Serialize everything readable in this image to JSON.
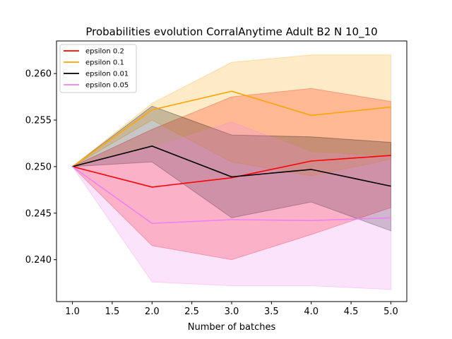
{
  "chart_data": {
    "type": "line",
    "title": "Probabilities evolution CorralAnytime Adult B2 N 10_10",
    "xlabel": "Number of batches",
    "ylabel": "",
    "xlim": [
      0.8,
      5.2
    ],
    "ylim": [
      0.2355,
      0.2635
    ],
    "xticks": [
      1.0,
      1.5,
      2.0,
      2.5,
      3.0,
      3.5,
      4.0,
      4.5,
      5.0
    ],
    "xtick_labels": [
      "1.0",
      "1.5",
      "2.0",
      "2.5",
      "3.0",
      "3.5",
      "4.0",
      "4.5",
      "5.0"
    ],
    "yticks": [
      0.24,
      0.245,
      0.25,
      0.255,
      0.26
    ],
    "ytick_labels": [
      "0.240",
      "0.245",
      "0.250",
      "0.255",
      "0.260"
    ],
    "grid": false,
    "legend_position": "top-left",
    "x": [
      1,
      2,
      3,
      4,
      5
    ],
    "series": [
      {
        "name": "epsilon 0.2",
        "color": "#ff0000",
        "values": [
          0.25,
          0.2478,
          0.2488,
          0.2506,
          0.2512
        ],
        "lower": [
          0.25,
          0.2415,
          0.24,
          0.2427,
          0.2456
        ],
        "upper": [
          0.25,
          0.254,
          0.2575,
          0.2584,
          0.257
        ],
        "band_opacity": 0.25
      },
      {
        "name": "epsilon 0.1",
        "color": "#ffa500",
        "values": [
          0.25,
          0.2561,
          0.2581,
          0.2555,
          0.2564
        ],
        "lower": [
          0.25,
          0.255,
          0.2505,
          0.249,
          0.2508
        ],
        "upper": [
          0.25,
          0.2568,
          0.2612,
          0.262,
          0.262
        ],
        "band_opacity": 0.22
      },
      {
        "name": "epsilon 0.01",
        "color": "#000000",
        "values": [
          0.25,
          0.2522,
          0.2489,
          0.2497,
          0.2479
        ],
        "lower": [
          0.25,
          0.2505,
          0.2445,
          0.2462,
          0.2431
        ],
        "upper": [
          0.25,
          0.2565,
          0.2534,
          0.2532,
          0.2526
        ],
        "band_opacity": 0.22
      },
      {
        "name": "epsilon 0.05",
        "color": "#ee82ee",
        "values": [
          0.25,
          0.2439,
          0.2443,
          0.2442,
          0.2445
        ],
        "lower": [
          0.25,
          0.2376,
          0.2372,
          0.2372,
          0.2368
        ],
        "upper": [
          0.25,
          0.252,
          0.2548,
          0.2515,
          0.251
        ],
        "band_opacity": 0.22
      }
    ]
  }
}
